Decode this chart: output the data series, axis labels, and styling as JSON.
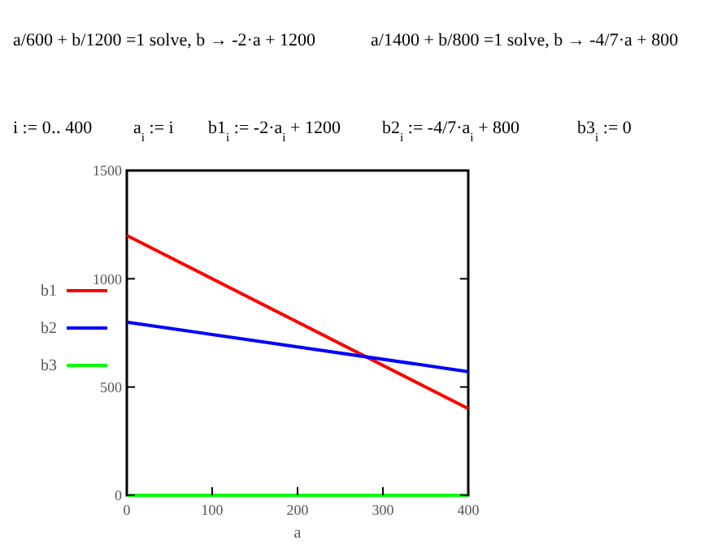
{
  "chart_data": {
    "type": "line",
    "xlabel": "a",
    "xlim": [
      0,
      400
    ],
    "xticks": [
      0,
      100,
      200,
      300,
      400
    ],
    "ylim": [
      0,
      1500
    ],
    "yticks": [
      0,
      500,
      1000,
      1500
    ],
    "grid": false,
    "x": [
      0,
      400
    ],
    "legend": "left",
    "marker": "none",
    "line_style": "solid",
    "series": [
      {
        "name": "b1",
        "color": "#ff0000",
        "values": [
          1200,
          400
        ]
      },
      {
        "name": "b2",
        "color": "#0000ff",
        "values": [
          800,
          571
        ]
      },
      {
        "name": "b3",
        "color": "#00ff00",
        "values": [
          0,
          0
        ]
      }
    ],
    "annotations": [
      "a/600 + b/1200 =1 solve, b → -2·a + 1200",
      "a/1400 + b/800 =1 solve, b → -4/7·a + 800",
      "i := 0‥ 400",
      "a$_{i}$ := i",
      "b1$_{i}$ := -2·a$_{i}$ + 1200",
      "b2$_{i}$ := -4/7·a$_{i}$ + 800",
      "b3$_{i}$ := 0"
    ]
  }
}
